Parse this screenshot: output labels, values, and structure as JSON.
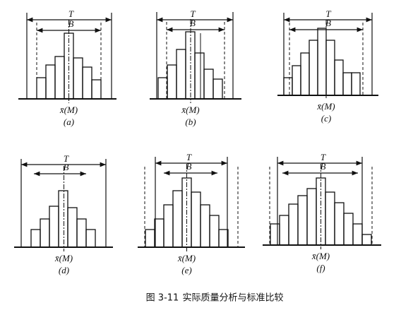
{
  "panels": [
    {
      "tolerance": "T",
      "spread": "B",
      "center": "x̄(M)",
      "label": "(a)"
    },
    {
      "tolerance": "T",
      "spread": "B",
      "center": "x̄(M)",
      "label": "(b)"
    },
    {
      "tolerance": "T",
      "spread": "B",
      "center": "x̄(M)",
      "label": "(c)"
    },
    {
      "tolerance": "T",
      "spread": "B",
      "center": "x̄(M)",
      "label": "(d)"
    },
    {
      "tolerance": "T",
      "spread": "B",
      "center": "x̄(M)",
      "label": "(e)"
    },
    {
      "tolerance": "T",
      "spread": "B",
      "center": "x̄(M)",
      "label": "(f)"
    }
  ],
  "caption": {
    "number": "图 3-11",
    "title": "实际质量分析与标准比较"
  }
}
